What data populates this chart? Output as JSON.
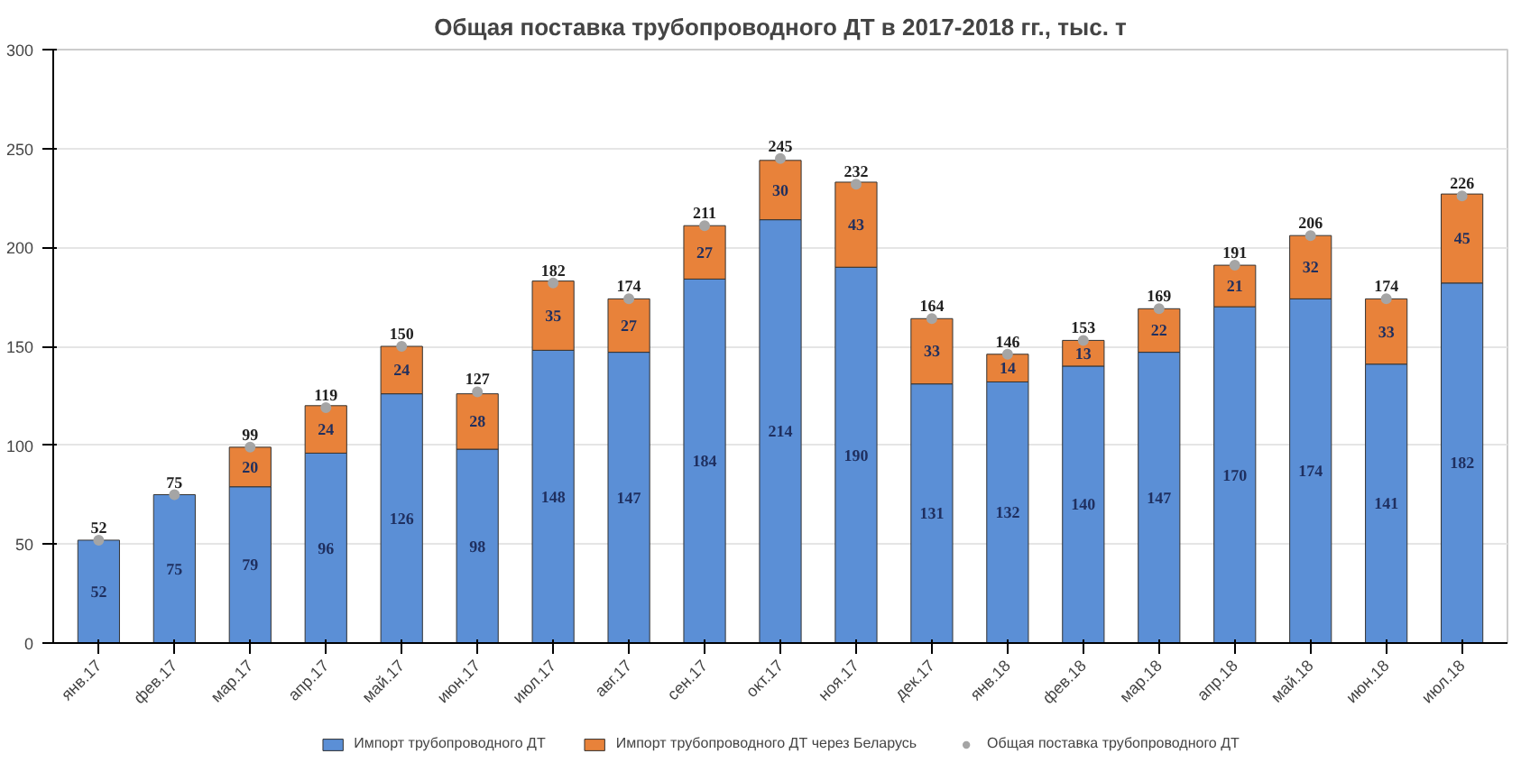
{
  "chart_data": {
    "type": "bar",
    "title": "Общая поставка трубопроводного ДТ в 2017-2018 гг., тыс. т",
    "stacked": true,
    "categories": [
      "янв.17",
      "фев.17",
      "мар.17",
      "апр.17",
      "май.17",
      "июн.17",
      "июл.17",
      "авг.17",
      "сен.17",
      "окт.17",
      "ноя.17",
      "дек.17",
      "янв.18",
      "фев.18",
      "мар.18",
      "апр.18",
      "май.18",
      "июн.18",
      "июл.18"
    ],
    "series": [
      {
        "name": "Импорт трубопроводного ДТ",
        "color": "#5b8fd6",
        "values": [
          52,
          75,
          79,
          96,
          126,
          98,
          148,
          147,
          184,
          214,
          190,
          131,
          132,
          140,
          147,
          170,
          174,
          141,
          182
        ],
        "value_labels": [
          "52",
          "75",
          "79",
          "96",
          "126",
          "98",
          "148",
          "147",
          "184",
          "214",
          "190",
          "131",
          "132",
          "140",
          "147",
          "170",
          "174",
          "141",
          "182"
        ]
      },
      {
        "name": "Импорт трубопроводного ДТ через Беларусь",
        "color": "#e8823a",
        "values": [
          null,
          null,
          20,
          24,
          24,
          28,
          35,
          27,
          27,
          30,
          43,
          33,
          14,
          13,
          22,
          21,
          32,
          33,
          45
        ],
        "value_labels": [
          null,
          null,
          "20",
          "24",
          "24",
          "28",
          "35",
          "27",
          "27",
          "30",
          "43",
          "33",
          "14",
          "13",
          "22",
          "21",
          "32",
          "33",
          "45"
        ]
      },
      {
        "name": "Общая поставка трубопроводного ДТ",
        "type": "scatter",
        "color": "#a5a5a5",
        "marker": "circle",
        "values": [
          52,
          75,
          99,
          119,
          150,
          127,
          182,
          174,
          211,
          245,
          232,
          164,
          146,
          153,
          169,
          191,
          206,
          174,
          226
        ],
        "value_labels": [
          "52",
          "75",
          "99",
          "119",
          "150",
          "127",
          "182",
          "174",
          "211",
          "245",
          "232",
          "164",
          "146",
          "153",
          "169",
          "191",
          "206",
          "174",
          "226"
        ]
      }
    ],
    "ylim": [
      0,
      300
    ],
    "yticks": [
      0,
      50,
      100,
      150,
      200,
      250,
      300
    ],
    "grid": "y",
    "legend": "bottom"
  }
}
